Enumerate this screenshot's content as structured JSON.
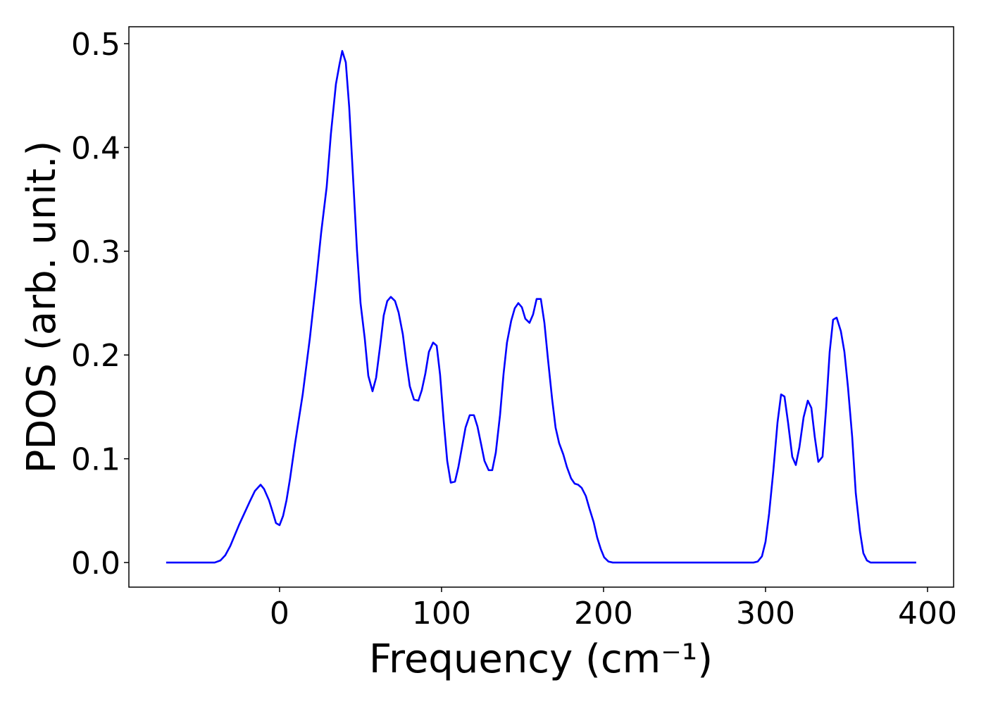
{
  "chart_data": {
    "type": "line",
    "x_label": "Frequency (cm⁻¹)",
    "y_label": "PDOS (arb. unit.)",
    "color": "#0000ff",
    "xlim": [
      -93,
      416.1
    ],
    "ylim": [
      -0.0237,
      0.5163
    ],
    "xticks": [
      0,
      100,
      200,
      300,
      400
    ],
    "yticks": [
      {
        "value": 0,
        "label": "0.0"
      },
      0.1,
      0.2,
      0.3,
      0.4,
      0.5
    ],
    "x": [
      -70,
      -40,
      -36.5,
      -33.5,
      -30.4,
      -24.8,
      -18.3,
      -15.2,
      -11.7,
      -9.6,
      -6.5,
      -3.9,
      -2.2,
      0,
      2.2,
      4.3,
      6.5,
      9.6,
      14.3,
      18.7,
      22.6,
      25.7,
      29.1,
      31.7,
      34.8,
      37,
      38.7,
      40.9,
      43,
      45.7,
      47.8,
      50,
      52.6,
      54.8,
      57.4,
      59.6,
      62.2,
      64.3,
      66.5,
      68.7,
      71.3,
      73.5,
      76.1,
      78.3,
      80.4,
      83,
      85.7,
      87.8,
      90,
      92.2,
      94.8,
      97,
      99.1,
      101.3,
      103.5,
      105.7,
      108.3,
      110.4,
      112.6,
      114.8,
      117.4,
      120,
      122.2,
      124.3,
      126.5,
      129.1,
      131.3,
      133.5,
      136.1,
      138.3,
      140.4,
      143,
      145.2,
      147.4,
      149.6,
      151.7,
      154.3,
      156.5,
      158.7,
      161.3,
      163.5,
      165.7,
      168.3,
      170.4,
      172.6,
      175.2,
      177.4,
      180,
      182.2,
      184.3,
      186.5,
      189.1,
      191.3,
      193.9,
      196.1,
      198.3,
      200.4,
      203,
      205.7,
      292.6,
      295.2,
      297.8,
      300,
      302.2,
      304.8,
      307.4,
      309.6,
      311.7,
      313.9,
      316.5,
      318.7,
      320.9,
      323.5,
      326.1,
      328.3,
      330.4,
      332.6,
      335.2,
      337.4,
      339.6,
      341.7,
      343.9,
      346.5,
      348.7,
      350.9,
      353.5,
      355.7,
      358.3,
      360.4,
      362.6,
      364.8,
      393
    ],
    "values": [
      0,
      0,
      0.002,
      0.007,
      0.016,
      0.037,
      0.059,
      0.069,
      0.075,
      0.071,
      0.06,
      0.047,
      0.038,
      0.036,
      0.045,
      0.06,
      0.081,
      0.115,
      0.162,
      0.216,
      0.271,
      0.318,
      0.362,
      0.413,
      0.461,
      0.48,
      0.493,
      0.482,
      0.439,
      0.362,
      0.301,
      0.25,
      0.216,
      0.18,
      0.165,
      0.178,
      0.21,
      0.238,
      0.252,
      0.256,
      0.252,
      0.241,
      0.22,
      0.193,
      0.17,
      0.157,
      0.156,
      0.166,
      0.182,
      0.203,
      0.212,
      0.209,
      0.181,
      0.137,
      0.098,
      0.077,
      0.078,
      0.092,
      0.111,
      0.13,
      0.142,
      0.142,
      0.131,
      0.115,
      0.098,
      0.089,
      0.089,
      0.106,
      0.142,
      0.182,
      0.212,
      0.233,
      0.245,
      0.25,
      0.246,
      0.235,
      0.231,
      0.239,
      0.254,
      0.254,
      0.231,
      0.196,
      0.157,
      0.13,
      0.115,
      0.104,
      0.092,
      0.081,
      0.076,
      0.075,
      0.072,
      0.064,
      0.052,
      0.039,
      0.024,
      0.013,
      0.005,
      0.001,
      0,
      0,
      0.001,
      0.006,
      0.02,
      0.047,
      0.088,
      0.135,
      0.162,
      0.16,
      0.135,
      0.102,
      0.094,
      0.111,
      0.14,
      0.156,
      0.149,
      0.121,
      0.097,
      0.102,
      0.149,
      0.203,
      0.234,
      0.236,
      0.223,
      0.203,
      0.169,
      0.121,
      0.067,
      0.03,
      0.009,
      0.002,
      0,
      0
    ]
  }
}
